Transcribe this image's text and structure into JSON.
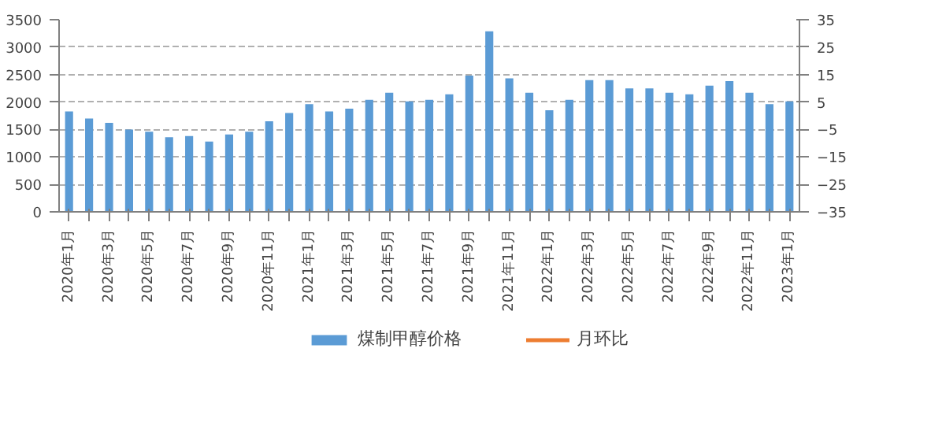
{
  "chart_data": {
    "type": "bar",
    "categories": [
      "2020年1月",
      null,
      "2020年3月",
      null,
      "2020年5月",
      null,
      "2020年7月",
      null,
      "2020年9月",
      null,
      "2020年11月",
      null,
      "2021年1月",
      null,
      "2021年3月",
      null,
      "2021年5月",
      null,
      "2021年7月",
      null,
      "2021年9月",
      null,
      "2021年11月",
      null,
      "2022年1月",
      null,
      "2022年3月",
      null,
      "2022年5月",
      null,
      "2022年7月",
      null,
      "2022年9月",
      null,
      "2022年11月",
      null,
      "2023年1月"
    ],
    "series": [
      {
        "name": "煤制甲醇价格",
        "color": "#5b9bd5",
        "values": [
          1830,
          1700,
          1620,
          1500,
          1460,
          1360,
          1380,
          1280,
          1410,
          1460,
          1650,
          1800,
          1960,
          1830,
          1880,
          2040,
          2170,
          2010,
          2040,
          2140,
          2480,
          3290,
          2430,
          2170,
          1850,
          2040,
          2400,
          2400,
          2250,
          2250,
          2170,
          2140,
          2300,
          2380,
          2170,
          1960,
          2010
        ]
      },
      {
        "name": "月环比",
        "type": "line",
        "axis": "y2",
        "color": "#ed7d31",
        "values": [
          null,
          null,
          null,
          null,
          null,
          null,
          null,
          null,
          null,
          null,
          null,
          null,
          null,
          null,
          null,
          null,
          null,
          null,
          null,
          null,
          null,
          null,
          null,
          null,
          null,
          null,
          null,
          null,
          null,
          null,
          null,
          null,
          null,
          null,
          null,
          null,
          null
        ]
      }
    ],
    "ylim": [
      0,
      3500
    ],
    "yticks": [
      0,
      500,
      1000,
      1500,
      2000,
      2500,
      3000,
      3500
    ],
    "y2lim": [
      -35,
      35
    ],
    "y2ticks": [
      -35,
      -25,
      -15,
      -5,
      5,
      15,
      25,
      35
    ],
    "grid": "y",
    "legend": "bottom"
  }
}
